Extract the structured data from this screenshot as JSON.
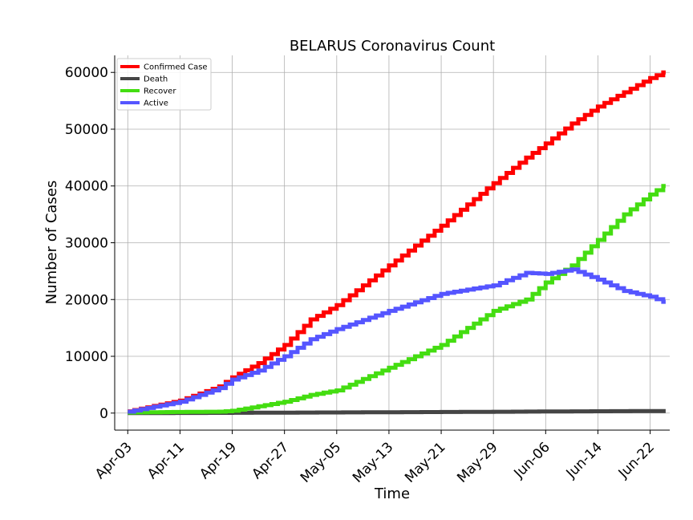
{
  "chart_data": {
    "type": "line",
    "title": "BELARUS Coronavirus Count",
    "xlabel": "Time",
    "ylabel": "Number of Cases",
    "ylim": [
      -3000,
      63000
    ],
    "xlim": [
      "2020-04-01",
      "2020-06-25"
    ],
    "grid": true,
    "legend_position": "top-left",
    "x_ticks": [
      "Apr-03",
      "Apr-11",
      "Apr-19",
      "Apr-27",
      "May-05",
      "May-13",
      "May-21",
      "May-29",
      "Jun-06",
      "Jun-14",
      "Jun-22"
    ],
    "x_tick_dates": [
      "2020-04-03",
      "2020-04-11",
      "2020-04-19",
      "2020-04-27",
      "2020-05-05",
      "2020-05-13",
      "2020-05-21",
      "2020-05-29",
      "2020-06-06",
      "2020-06-14",
      "2020-06-22"
    ],
    "y_ticks": [
      0,
      10000,
      20000,
      30000,
      40000,
      50000,
      60000
    ],
    "x": [
      "2020-04-03",
      "2020-04-11",
      "2020-04-17",
      "2020-04-19",
      "2020-04-23",
      "2020-04-27",
      "2020-05-01",
      "2020-05-05",
      "2020-05-13",
      "2020-05-21",
      "2020-05-29",
      "2020-06-03",
      "2020-06-06",
      "2020-06-10",
      "2020-06-14",
      "2020-06-18",
      "2020-06-22",
      "2020-06-24"
    ],
    "series": [
      {
        "name": "Confirmed Case",
        "color": "#ff0000",
        "values": [
          300,
          2200,
          4700,
          6300,
          8800,
          12000,
          16500,
          19000,
          26000,
          33000,
          40500,
          45000,
          47500,
          51000,
          54000,
          56500,
          59000,
          60000
        ]
      },
      {
        "name": "Death",
        "color": "#454545",
        "values": [
          5,
          20,
          40,
          50,
          65,
          80,
          100,
          115,
          150,
          190,
          230,
          260,
          280,
          300,
          320,
          340,
          355,
          370
        ]
      },
      {
        "name": "Recover",
        "color": "#44dd11",
        "values": [
          100,
          200,
          250,
          400,
          1200,
          2000,
          3200,
          4000,
          8000,
          12000,
          18000,
          20000,
          23000,
          26000,
          30500,
          35000,
          38500,
          40000
        ]
      },
      {
        "name": "Active",
        "color": "#5555ff",
        "values": [
          250,
          2000,
          4400,
          5900,
          7500,
          10000,
          13000,
          14800,
          18000,
          21000,
          22500,
          24700,
          24500,
          25300,
          23500,
          21500,
          20500,
          19600
        ]
      }
    ]
  }
}
